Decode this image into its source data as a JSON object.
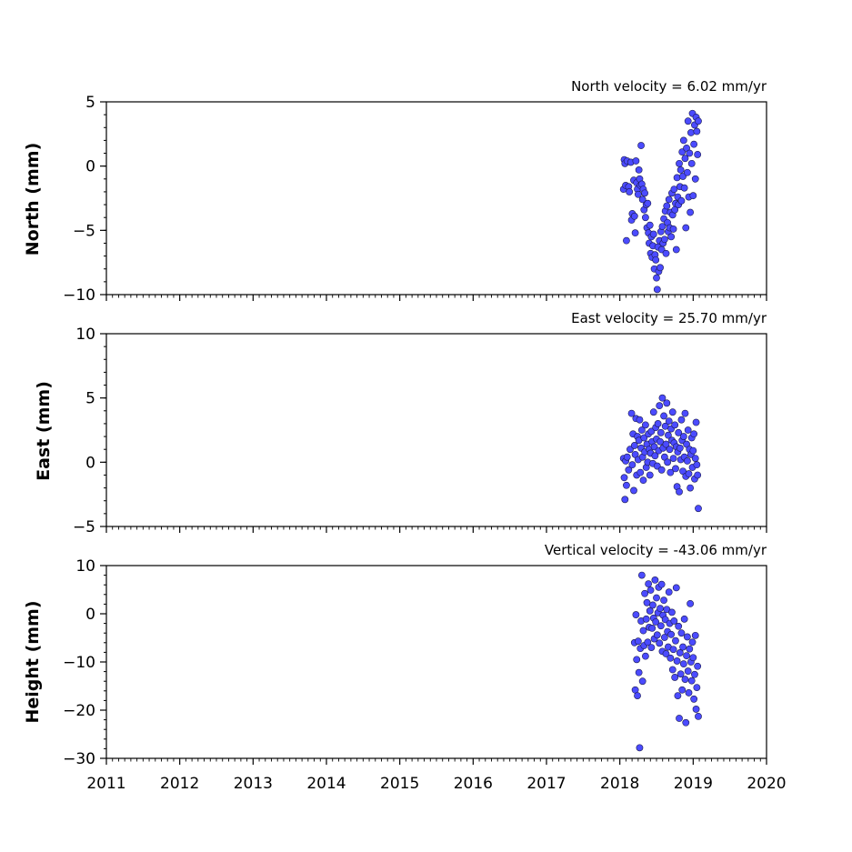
{
  "chart_data": [
    {
      "type": "scatter",
      "title": "North velocity = 6.02 mm/yr",
      "xlabel": "",
      "ylabel": "North (mm)",
      "xlim": [
        2011,
        2020
      ],
      "ylim": [
        -10,
        5
      ],
      "yticks": [
        5,
        0,
        -5,
        -10
      ],
      "ytick_labels": [
        "5",
        "0",
        "−5",
        "−10"
      ],
      "grid": false,
      "marker_color": "#4b4bff",
      "marker_edge": "#1a1a4d",
      "points": [
        [
          2018.05,
          -1.8
        ],
        [
          2018.06,
          0.5
        ],
        [
          2018.07,
          0.2
        ],
        [
          2018.08,
          -1.5
        ],
        [
          2018.09,
          -5.8
        ],
        [
          2018.1,
          0.4
        ],
        [
          2018.12,
          -1.6
        ],
        [
          2018.13,
          -2.0
        ],
        [
          2018.15,
          0.3
        ],
        [
          2018.16,
          -4.2
        ],
        [
          2018.17,
          -3.7
        ],
        [
          2018.19,
          -1.1
        ],
        [
          2018.2,
          -3.9
        ],
        [
          2018.21,
          -5.2
        ],
        [
          2018.22,
          0.4
        ],
        [
          2018.23,
          -1.3
        ],
        [
          2018.24,
          -1.8
        ],
        [
          2018.25,
          -2.2
        ],
        [
          2018.26,
          -0.3
        ],
        [
          2018.27,
          -1.0
        ],
        [
          2018.28,
          -1.5
        ],
        [
          2018.29,
          1.6
        ],
        [
          2018.3,
          -1.4
        ],
        [
          2018.31,
          -2.6
        ],
        [
          2018.32,
          -1.8
        ],
        [
          2018.33,
          -3.4
        ],
        [
          2018.34,
          -2.1
        ],
        [
          2018.35,
          -4.0
        ],
        [
          2018.36,
          -3.0
        ],
        [
          2018.37,
          -4.8
        ],
        [
          2018.38,
          -2.9
        ],
        [
          2018.39,
          -5.2
        ],
        [
          2018.4,
          -6.0
        ],
        [
          2018.41,
          -4.6
        ],
        [
          2018.42,
          -6.8
        ],
        [
          2018.43,
          -5.5
        ],
        [
          2018.44,
          -7.1
        ],
        [
          2018.45,
          -6.2
        ],
        [
          2018.46,
          -5.3
        ],
        [
          2018.47,
          -8.0
        ],
        [
          2018.48,
          -6.9
        ],
        [
          2018.49,
          -7.3
        ],
        [
          2018.5,
          -8.7
        ],
        [
          2018.51,
          -9.6
        ],
        [
          2018.52,
          -6.3
        ],
        [
          2018.53,
          -8.2
        ],
        [
          2018.54,
          -5.8
        ],
        [
          2018.55,
          -7.9
        ],
        [
          2018.56,
          -5.1
        ],
        [
          2018.57,
          -6.5
        ],
        [
          2018.58,
          -4.7
        ],
        [
          2018.59,
          -6.0
        ],
        [
          2018.6,
          -4.1
        ],
        [
          2018.61,
          -5.7
        ],
        [
          2018.62,
          -3.5
        ],
        [
          2018.63,
          -6.8
        ],
        [
          2018.64,
          -3.1
        ],
        [
          2018.65,
          -4.4
        ],
        [
          2018.66,
          -5.1
        ],
        [
          2018.67,
          -2.6
        ],
        [
          2018.68,
          -4.8
        ],
        [
          2018.69,
          -3.6
        ],
        [
          2018.7,
          -5.5
        ],
        [
          2018.71,
          -2.1
        ],
        [
          2018.72,
          -3.8
        ],
        [
          2018.73,
          -4.9
        ],
        [
          2018.74,
          -1.8
        ],
        [
          2018.75,
          -3.4
        ],
        [
          2018.76,
          -2.9
        ],
        [
          2018.77,
          -6.5
        ],
        [
          2018.78,
          -0.9
        ],
        [
          2018.79,
          -2.4
        ],
        [
          2018.8,
          -3.0
        ],
        [
          2018.81,
          0.2
        ],
        [
          2018.82,
          -1.6
        ],
        [
          2018.83,
          -0.3
        ],
        [
          2018.84,
          -2.7
        ],
        [
          2018.85,
          1.1
        ],
        [
          2018.86,
          -0.8
        ],
        [
          2018.87,
          2.0
        ],
        [
          2018.88,
          -1.7
        ],
        [
          2018.89,
          0.6
        ],
        [
          2018.9,
          -4.8
        ],
        [
          2018.91,
          1.4
        ],
        [
          2018.92,
          -0.5
        ],
        [
          2018.93,
          3.5
        ],
        [
          2018.94,
          -2.4
        ],
        [
          2018.95,
          1.0
        ],
        [
          2018.96,
          -3.6
        ],
        [
          2018.97,
          2.6
        ],
        [
          2018.98,
          0.2
        ],
        [
          2018.99,
          4.1
        ],
        [
          2019.0,
          -2.3
        ],
        [
          2019.01,
          1.7
        ],
        [
          2019.02,
          3.2
        ],
        [
          2019.03,
          -1.0
        ],
        [
          2019.04,
          3.8
        ],
        [
          2019.05,
          2.7
        ],
        [
          2019.06,
          0.9
        ],
        [
          2019.07,
          3.5
        ]
      ]
    },
    {
      "type": "scatter",
      "title": "East velocity = 25.70 mm/yr",
      "xlabel": "",
      "ylabel": "East (mm)",
      "xlim": [
        2011,
        2020
      ],
      "ylim": [
        -5,
        10
      ],
      "yticks": [
        10,
        5,
        0,
        -5
      ],
      "ytick_labels": [
        "10",
        "5",
        "0",
        "−5"
      ],
      "grid": false,
      "marker_color": "#4b4bff",
      "marker_edge": "#1a1a4d",
      "points": [
        [
          2018.05,
          0.3
        ],
        [
          2018.06,
          -1.2
        ],
        [
          2018.07,
          -2.9
        ],
        [
          2018.08,
          0.1
        ],
        [
          2018.09,
          -1.8
        ],
        [
          2018.1,
          0.4
        ],
        [
          2018.12,
          -0.6
        ],
        [
          2018.14,
          1.0
        ],
        [
          2018.16,
          3.8
        ],
        [
          2018.17,
          -0.2
        ],
        [
          2018.18,
          2.2
        ],
        [
          2018.19,
          -2.2
        ],
        [
          2018.2,
          1.3
        ],
        [
          2018.21,
          0.6
        ],
        [
          2018.22,
          3.4
        ],
        [
          2018.23,
          -1.0
        ],
        [
          2018.24,
          2.0
        ],
        [
          2018.25,
          0.2
        ],
        [
          2018.26,
          1.7
        ],
        [
          2018.27,
          3.3
        ],
        [
          2018.28,
          -0.8
        ],
        [
          2018.29,
          1.1
        ],
        [
          2018.3,
          2.5
        ],
        [
          2018.31,
          0.4
        ],
        [
          2018.32,
          -1.4
        ],
        [
          2018.33,
          1.9
        ],
        [
          2018.34,
          0.8
        ],
        [
          2018.35,
          2.9
        ],
        [
          2018.36,
          -0.4
        ],
        [
          2018.37,
          1.4
        ],
        [
          2018.38,
          0.0
        ],
        [
          2018.39,
          2.2
        ],
        [
          2018.4,
          1.0
        ],
        [
          2018.41,
          -1.0
        ],
        [
          2018.42,
          0.7
        ],
        [
          2018.43,
          2.4
        ],
        [
          2018.44,
          1.6
        ],
        [
          2018.45,
          -0.1
        ],
        [
          2018.46,
          3.9
        ],
        [
          2018.47,
          1.2
        ],
        [
          2018.48,
          0.5
        ],
        [
          2018.49,
          2.7
        ],
        [
          2018.5,
          1.8
        ],
        [
          2018.51,
          -0.3
        ],
        [
          2018.52,
          3.0
        ],
        [
          2018.53,
          0.9
        ],
        [
          2018.54,
          4.4
        ],
        [
          2018.55,
          1.6
        ],
        [
          2018.56,
          2.3
        ],
        [
          2018.57,
          -0.6
        ],
        [
          2018.58,
          5.0
        ],
        [
          2018.59,
          1.1
        ],
        [
          2018.6,
          3.6
        ],
        [
          2018.61,
          0.4
        ],
        [
          2018.62,
          2.8
        ],
        [
          2018.63,
          1.4
        ],
        [
          2018.64,
          4.6
        ],
        [
          2018.65,
          0.0
        ],
        [
          2018.66,
          2.1
        ],
        [
          2018.67,
          3.2
        ],
        [
          2018.68,
          1.0
        ],
        [
          2018.69,
          -0.8
        ],
        [
          2018.7,
          2.6
        ],
        [
          2018.71,
          1.7
        ],
        [
          2018.72,
          3.9
        ],
        [
          2018.73,
          0.3
        ],
        [
          2018.74,
          1.5
        ],
        [
          2018.75,
          2.9
        ],
        [
          2018.76,
          -0.5
        ],
        [
          2018.77,
          1.2
        ],
        [
          2018.78,
          -1.9
        ],
        [
          2018.79,
          0.8
        ],
        [
          2018.8,
          2.3
        ],
        [
          2018.81,
          -2.3
        ],
        [
          2018.82,
          1.1
        ],
        [
          2018.83,
          0.2
        ],
        [
          2018.84,
          3.3
        ],
        [
          2018.85,
          1.7
        ],
        [
          2018.86,
          -0.7
        ],
        [
          2018.87,
          2.0
        ],
        [
          2018.88,
          0.4
        ],
        [
          2018.89,
          3.8
        ],
        [
          2018.9,
          -1.1
        ],
        [
          2018.91,
          1.4
        ],
        [
          2018.92,
          0.1
        ],
        [
          2018.93,
          2.5
        ],
        [
          2018.94,
          -0.9
        ],
        [
          2018.95,
          1.0
        ],
        [
          2018.96,
          -2.0
        ],
        [
          2018.97,
          0.6
        ],
        [
          2018.98,
          1.9
        ],
        [
          2018.99,
          -0.4
        ],
        [
          2019.0,
          0.9
        ],
        [
          2019.01,
          2.2
        ],
        [
          2019.02,
          -1.3
        ],
        [
          2019.03,
          0.3
        ],
        [
          2019.04,
          3.1
        ],
        [
          2019.05,
          -0.2
        ],
        [
          2019.06,
          -1.0
        ],
        [
          2019.07,
          -3.6
        ]
      ]
    },
    {
      "type": "scatter",
      "title": "Vertical velocity = -43.06 mm/yr",
      "xlabel": "",
      "ylabel": "Height (mm)",
      "xlim": [
        2011,
        2020
      ],
      "ylim": [
        -30,
        10
      ],
      "yticks": [
        10,
        0,
        -10,
        -20,
        -30
      ],
      "ytick_labels": [
        "10",
        "0",
        "−10",
        "−20",
        "−30"
      ],
      "xticks": [
        2011,
        2012,
        2013,
        2014,
        2015,
        2016,
        2017,
        2018,
        2019,
        2020
      ],
      "xtick_labels": [
        "2011",
        "2012",
        "2013",
        "2014",
        "2015",
        "2016",
        "2017",
        "2018",
        "2019",
        "2020"
      ],
      "grid": false,
      "marker_color": "#4b4bff",
      "marker_edge": "#1a1a4d",
      "points": [
        [
          2018.2,
          -6.0
        ],
        [
          2018.21,
          -15.8
        ],
        [
          2018.22,
          -0.2
        ],
        [
          2018.23,
          -9.5
        ],
        [
          2018.24,
          -17.0
        ],
        [
          2018.25,
          -5.7
        ],
        [
          2018.26,
          -12.2
        ],
        [
          2018.27,
          -27.8
        ],
        [
          2018.28,
          -7.2
        ],
        [
          2018.29,
          -1.5
        ],
        [
          2018.3,
          8.0
        ],
        [
          2018.31,
          -14.0
        ],
        [
          2018.32,
          -3.5
        ],
        [
          2018.33,
          -6.6
        ],
        [
          2018.34,
          4.2
        ],
        [
          2018.35,
          -8.8
        ],
        [
          2018.36,
          -1.1
        ],
        [
          2018.37,
          2.3
        ],
        [
          2018.38,
          -5.9
        ],
        [
          2018.39,
          6.2
        ],
        [
          2018.4,
          -2.8
        ],
        [
          2018.41,
          0.6
        ],
        [
          2018.42,
          4.9
        ],
        [
          2018.43,
          -7.0
        ],
        [
          2018.44,
          -3.0
        ],
        [
          2018.45,
          1.8
        ],
        [
          2018.46,
          -0.9
        ],
        [
          2018.47,
          -5.2
        ],
        [
          2018.48,
          7.0
        ],
        [
          2018.49,
          -1.7
        ],
        [
          2018.5,
          3.3
        ],
        [
          2018.51,
          -4.4
        ],
        [
          2018.52,
          0.2
        ],
        [
          2018.53,
          5.5
        ],
        [
          2018.54,
          -6.1
        ],
        [
          2018.55,
          1.1
        ],
        [
          2018.56,
          -2.5
        ],
        [
          2018.57,
          6.1
        ],
        [
          2018.58,
          -7.8
        ],
        [
          2018.59,
          -0.3
        ],
        [
          2018.6,
          2.8
        ],
        [
          2018.61,
          -4.9
        ],
        [
          2018.62,
          -1.2
        ],
        [
          2018.63,
          -8.3
        ],
        [
          2018.64,
          0.9
        ],
        [
          2018.65,
          -3.7
        ],
        [
          2018.66,
          -6.9
        ],
        [
          2018.67,
          4.5
        ],
        [
          2018.68,
          -2.0
        ],
        [
          2018.69,
          -9.2
        ],
        [
          2018.7,
          -4.3
        ],
        [
          2018.71,
          0.3
        ],
        [
          2018.72,
          -11.6
        ],
        [
          2018.73,
          -7.4
        ],
        [
          2018.74,
          -1.5
        ],
        [
          2018.75,
          -13.2
        ],
        [
          2018.76,
          -5.6
        ],
        [
          2018.77,
          5.4
        ],
        [
          2018.78,
          -9.8
        ],
        [
          2018.79,
          -17.0
        ],
        [
          2018.8,
          -2.6
        ],
        [
          2018.81,
          -21.7
        ],
        [
          2018.82,
          -8.1
        ],
        [
          2018.83,
          -12.5
        ],
        [
          2018.84,
          -4.0
        ],
        [
          2018.85,
          -15.8
        ],
        [
          2018.86,
          -6.9
        ],
        [
          2018.87,
          -10.4
        ],
        [
          2018.88,
          -1.1
        ],
        [
          2018.89,
          -13.6
        ],
        [
          2018.9,
          -22.6
        ],
        [
          2018.91,
          -8.7
        ],
        [
          2018.92,
          -4.8
        ],
        [
          2018.93,
          -11.9
        ],
        [
          2018.94,
          -16.4
        ],
        [
          2018.95,
          -7.3
        ],
        [
          2018.96,
          2.1
        ],
        [
          2018.97,
          -10.0
        ],
        [
          2018.98,
          -13.9
        ],
        [
          2018.99,
          -5.9
        ],
        [
          2019.0,
          -9.1
        ],
        [
          2019.01,
          -17.7
        ],
        [
          2019.02,
          -12.6
        ],
        [
          2019.03,
          -4.5
        ],
        [
          2019.04,
          -19.8
        ],
        [
          2019.05,
          -15.3
        ],
        [
          2019.06,
          -10.9
        ],
        [
          2019.07,
          -21.3
        ]
      ]
    }
  ]
}
